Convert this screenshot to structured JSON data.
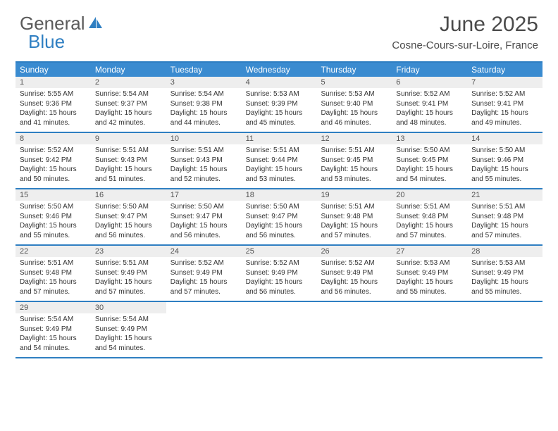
{
  "brand": {
    "part1": "General",
    "part2": "Blue"
  },
  "title": {
    "month": "June 2025",
    "location": "Cosne-Cours-sur-Loire, France"
  },
  "colors": {
    "header_bg": "#3a8bd0",
    "rule": "#2f7fc2",
    "daynum_bg": "#eeeeee",
    "text": "#333333",
    "title_text": "#4a4a4a"
  },
  "weekdays": [
    "Sunday",
    "Monday",
    "Tuesday",
    "Wednesday",
    "Thursday",
    "Friday",
    "Saturday"
  ],
  "labels": {
    "sunrise": "Sunrise:",
    "sunset": "Sunset:",
    "daylight": "Daylight:"
  },
  "days": [
    {
      "n": 1,
      "sunrise": "5:55 AM",
      "sunset": "9:36 PM",
      "daylight": "15 hours and 41 minutes."
    },
    {
      "n": 2,
      "sunrise": "5:54 AM",
      "sunset": "9:37 PM",
      "daylight": "15 hours and 42 minutes."
    },
    {
      "n": 3,
      "sunrise": "5:54 AM",
      "sunset": "9:38 PM",
      "daylight": "15 hours and 44 minutes."
    },
    {
      "n": 4,
      "sunrise": "5:53 AM",
      "sunset": "9:39 PM",
      "daylight": "15 hours and 45 minutes."
    },
    {
      "n": 5,
      "sunrise": "5:53 AM",
      "sunset": "9:40 PM",
      "daylight": "15 hours and 46 minutes."
    },
    {
      "n": 6,
      "sunrise": "5:52 AM",
      "sunset": "9:41 PM",
      "daylight": "15 hours and 48 minutes."
    },
    {
      "n": 7,
      "sunrise": "5:52 AM",
      "sunset": "9:41 PM",
      "daylight": "15 hours and 49 minutes."
    },
    {
      "n": 8,
      "sunrise": "5:52 AM",
      "sunset": "9:42 PM",
      "daylight": "15 hours and 50 minutes."
    },
    {
      "n": 9,
      "sunrise": "5:51 AM",
      "sunset": "9:43 PM",
      "daylight": "15 hours and 51 minutes."
    },
    {
      "n": 10,
      "sunrise": "5:51 AM",
      "sunset": "9:43 PM",
      "daylight": "15 hours and 52 minutes."
    },
    {
      "n": 11,
      "sunrise": "5:51 AM",
      "sunset": "9:44 PM",
      "daylight": "15 hours and 53 minutes."
    },
    {
      "n": 12,
      "sunrise": "5:51 AM",
      "sunset": "9:45 PM",
      "daylight": "15 hours and 53 minutes."
    },
    {
      "n": 13,
      "sunrise": "5:50 AM",
      "sunset": "9:45 PM",
      "daylight": "15 hours and 54 minutes."
    },
    {
      "n": 14,
      "sunrise": "5:50 AM",
      "sunset": "9:46 PM",
      "daylight": "15 hours and 55 minutes."
    },
    {
      "n": 15,
      "sunrise": "5:50 AM",
      "sunset": "9:46 PM",
      "daylight": "15 hours and 55 minutes."
    },
    {
      "n": 16,
      "sunrise": "5:50 AM",
      "sunset": "9:47 PM",
      "daylight": "15 hours and 56 minutes."
    },
    {
      "n": 17,
      "sunrise": "5:50 AM",
      "sunset": "9:47 PM",
      "daylight": "15 hours and 56 minutes."
    },
    {
      "n": 18,
      "sunrise": "5:50 AM",
      "sunset": "9:47 PM",
      "daylight": "15 hours and 56 minutes."
    },
    {
      "n": 19,
      "sunrise": "5:51 AM",
      "sunset": "9:48 PM",
      "daylight": "15 hours and 57 minutes."
    },
    {
      "n": 20,
      "sunrise": "5:51 AM",
      "sunset": "9:48 PM",
      "daylight": "15 hours and 57 minutes."
    },
    {
      "n": 21,
      "sunrise": "5:51 AM",
      "sunset": "9:48 PM",
      "daylight": "15 hours and 57 minutes."
    },
    {
      "n": 22,
      "sunrise": "5:51 AM",
      "sunset": "9:48 PM",
      "daylight": "15 hours and 57 minutes."
    },
    {
      "n": 23,
      "sunrise": "5:51 AM",
      "sunset": "9:49 PM",
      "daylight": "15 hours and 57 minutes."
    },
    {
      "n": 24,
      "sunrise": "5:52 AM",
      "sunset": "9:49 PM",
      "daylight": "15 hours and 57 minutes."
    },
    {
      "n": 25,
      "sunrise": "5:52 AM",
      "sunset": "9:49 PM",
      "daylight": "15 hours and 56 minutes."
    },
    {
      "n": 26,
      "sunrise": "5:52 AM",
      "sunset": "9:49 PM",
      "daylight": "15 hours and 56 minutes."
    },
    {
      "n": 27,
      "sunrise": "5:53 AM",
      "sunset": "9:49 PM",
      "daylight": "15 hours and 55 minutes."
    },
    {
      "n": 28,
      "sunrise": "5:53 AM",
      "sunset": "9:49 PM",
      "daylight": "15 hours and 55 minutes."
    },
    {
      "n": 29,
      "sunrise": "5:54 AM",
      "sunset": "9:49 PM",
      "daylight": "15 hours and 54 minutes."
    },
    {
      "n": 30,
      "sunrise": "5:54 AM",
      "sunset": "9:49 PM",
      "daylight": "15 hours and 54 minutes."
    }
  ],
  "calendar_layout": {
    "columns": 7,
    "start_weekday_index": 0,
    "trailing_empty": 5
  }
}
